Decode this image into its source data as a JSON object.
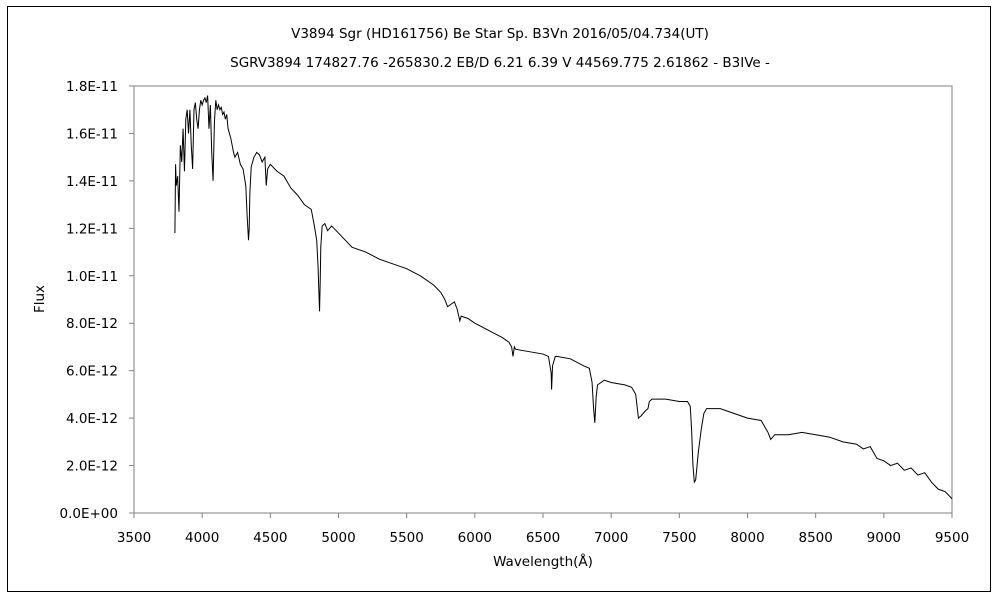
{
  "chart_data": {
    "type": "line",
    "title": "V3894 Sgr (HD161756)   Be Star   Sp. B3Vn   2016/05/04.734(UT)",
    "subtitle": "SGRV3894 174827.76 -265830.2 EB/D 6.21 6.39 V 44569.775 2.61862 - B3IVe -",
    "xlabel": "Wavelength(Å)",
    "ylabel": "Flux",
    "xlim": [
      3500,
      9500
    ],
    "ylim": [
      0,
      1.8e-11
    ],
    "x_ticks": [
      "3500",
      "4000",
      "4500",
      "5000",
      "5500",
      "6000",
      "6500",
      "7000",
      "7500",
      "8000",
      "8500",
      "9000",
      "9500"
    ],
    "y_ticks": [
      "0.0E+00",
      "2.0E-12",
      "4.0E-12",
      "6.0E-12",
      "8.0E-12",
      "1.0E-11",
      "1.2E-11",
      "1.4E-11",
      "1.6E-11",
      "1.8E-11"
    ],
    "grid": false,
    "legend": "none",
    "series": [
      {
        "x": [
          3800,
          3805,
          3810,
          3820,
          3830,
          3840,
          3850,
          3860,
          3870,
          3880,
          3890,
          3900,
          3910,
          3920,
          3930,
          3940,
          3950,
          3960,
          3970,
          3980,
          3990,
          4000,
          4010,
          4020,
          4030,
          4040,
          4050,
          4060,
          4070,
          4080,
          4090,
          4100,
          4110,
          4120,
          4130,
          4140,
          4150,
          4160,
          4170,
          4180,
          4190,
          4200,
          4210,
          4220,
          4230,
          4240,
          4260,
          4280,
          4300,
          4320,
          4330,
          4340,
          4345,
          4350,
          4360,
          4380,
          4400,
          4420,
          4440,
          4460,
          4470,
          4480,
          4500,
          4550,
          4600,
          4650,
          4700,
          4750,
          4800,
          4820,
          4840,
          4850,
          4855,
          4861,
          4866,
          4870,
          4880,
          4900,
          4920,
          4950,
          5000,
          5100,
          5200,
          5300,
          5400,
          5500,
          5600,
          5700,
          5750,
          5780,
          5800,
          5850,
          5870,
          5890,
          5900,
          5950,
          6000,
          6100,
          6200,
          6250,
          6270,
          6280,
          6290,
          6300,
          6400,
          6500,
          6540,
          6560,
          6563,
          6570,
          6590,
          6600,
          6700,
          6800,
          6840,
          6860,
          6870,
          6880,
          6890,
          6900,
          6950,
          7000,
          7100,
          7150,
          7180,
          7190,
          7200,
          7220,
          7250,
          7270,
          7280,
          7300,
          7400,
          7500,
          7560,
          7580,
          7590,
          7600,
          7610,
          7620,
          7640,
          7660,
          7680,
          7700,
          7800,
          7900,
          8000,
          8100,
          8150,
          8170,
          8200,
          8300,
          8400,
          8500,
          8600,
          8700,
          8800,
          8850,
          8900,
          8950,
          9000,
          9050,
          9100,
          9150,
          9200,
          9250,
          9300,
          9350,
          9400,
          9450,
          9500
        ],
        "values": [
          1.18e-11,
          1.47e-11,
          1.38e-11,
          1.42e-11,
          1.27e-11,
          1.55e-11,
          1.48e-11,
          1.62e-11,
          1.44e-11,
          1.66e-11,
          1.7e-11,
          1.6e-11,
          1.7e-11,
          1.55e-11,
          1.45e-11,
          1.7e-11,
          1.73e-11,
          1.66e-11,
          1.62e-11,
          1.7e-11,
          1.74e-11,
          1.72e-11,
          1.74e-11,
          1.75e-11,
          1.73e-11,
          1.76e-11,
          1.62e-11,
          1.72e-11,
          1.52e-11,
          1.4e-11,
          1.65e-11,
          1.74e-11,
          1.7e-11,
          1.72e-11,
          1.7e-11,
          1.71e-11,
          1.68e-11,
          1.69e-11,
          1.66e-11,
          1.68e-11,
          1.62e-11,
          1.6e-11,
          1.58e-11,
          1.55e-11,
          1.52e-11,
          1.5e-11,
          1.52e-11,
          1.47e-11,
          1.45e-11,
          1.38e-11,
          1.25e-11,
          1.15e-11,
          1.2e-11,
          1.35e-11,
          1.46e-11,
          1.5e-11,
          1.52e-11,
          1.51e-11,
          1.48e-11,
          1.5e-11,
          1.38e-11,
          1.45e-11,
          1.47e-11,
          1.44e-11,
          1.42e-11,
          1.37e-11,
          1.34e-11,
          1.3e-11,
          1.28e-11,
          1.22e-11,
          1.15e-11,
          1.04e-11,
          9.5e-12,
          8.5e-12,
          9.8e-12,
          1.12e-11,
          1.21e-11,
          1.22e-11,
          1.19e-11,
          1.21e-11,
          1.18e-11,
          1.12e-11,
          1.1e-11,
          1.07e-11,
          1.05e-11,
          1.03e-11,
          1e-11,
          9.6e-12,
          9.3e-12,
          9e-12,
          8.7e-12,
          8.9e-12,
          8.6e-12,
          8.1e-12,
          8.3e-12,
          8.2e-12,
          8e-12,
          7.7e-12,
          7.4e-12,
          7.2e-12,
          7e-12,
          6.6e-12,
          7e-12,
          6.9e-12,
          6.8e-12,
          6.7e-12,
          6.6e-12,
          5.9e-12,
          5.2e-12,
          6.2e-12,
          6.6e-12,
          6.6e-12,
          6.5e-12,
          6.2e-12,
          6.1e-12,
          5.5e-12,
          4.5e-12,
          3.8e-12,
          4.9e-12,
          5.4e-12,
          5.6e-12,
          5.5e-12,
          5.4e-12,
          5.3e-12,
          5e-12,
          4.5e-12,
          4e-12,
          4.1e-12,
          4.3e-12,
          4.4e-12,
          4.7e-12,
          4.8e-12,
          4.8e-12,
          4.7e-12,
          4.7e-12,
          4.5e-12,
          3.5e-12,
          2e-12,
          1.3e-12,
          1.4e-12,
          2.6e-12,
          3.5e-12,
          4.2e-12,
          4.4e-12,
          4.4e-12,
          4.2e-12,
          4e-12,
          3.9e-12,
          3.4e-12,
          3.1e-12,
          3.3e-12,
          3.3e-12,
          3.4e-12,
          3.3e-12,
          3.2e-12,
          3e-12,
          2.9e-12,
          2.7e-12,
          2.8e-12,
          2.3e-12,
          2.2e-12,
          2e-12,
          2.1e-12,
          1.8e-12,
          1.9e-12,
          1.6e-12,
          1.7e-12,
          1.3e-12,
          1e-12,
          9e-13,
          6e-13
        ]
      }
    ]
  }
}
